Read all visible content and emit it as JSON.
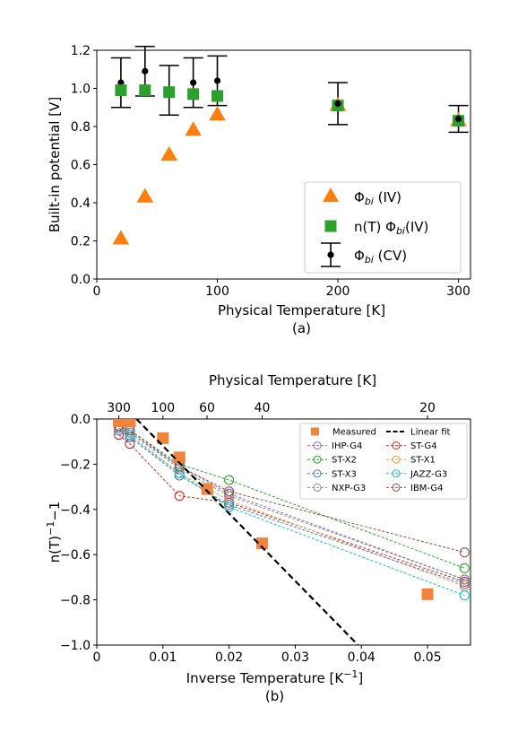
{
  "chart_data": [
    {
      "type": "scatter",
      "panel_label": "(a)",
      "xlabel": "Physical  Temperature [K]",
      "ylabel": "Built-in potential [V]",
      "xlim": [
        0,
        310
      ],
      "ylim": [
        0,
        1.2
      ],
      "xticks": [
        0,
        100,
        200,
        300
      ],
      "yticks": [
        0.0,
        0.2,
        0.4,
        0.6,
        0.8,
        1.0,
        1.2
      ],
      "grid": false,
      "legend_position": "lower-right",
      "series": [
        {
          "name": "Φ_bi (IV)",
          "legend_label": "Φ",
          "legend_sub": "bi",
          "legend_suffix": " (IV)",
          "marker": "triangle",
          "color": "#ff7f0e",
          "x": [
            20,
            40,
            60,
            80,
            100,
            200,
            300
          ],
          "y": [
            0.21,
            0.43,
            0.65,
            0.78,
            0.86,
            0.91,
            0.83
          ]
        },
        {
          "name": "n(T) Φ_bi(IV)",
          "legend_label": "n(T) Φ",
          "legend_sub": "bi",
          "legend_suffix": "(IV)",
          "marker": "square",
          "color": "#2ca02c",
          "x": [
            20,
            40,
            60,
            80,
            100,
            200,
            300
          ],
          "y": [
            0.99,
            0.99,
            0.98,
            0.97,
            0.96,
            0.91,
            0.83
          ]
        },
        {
          "name": "Φ_bi (CV)",
          "legend_label": "Φ",
          "legend_sub": "bi",
          "legend_suffix": " (CV)",
          "marker": "errorbar",
          "color": "#000000",
          "x": [
            20,
            40,
            60,
            80,
            100,
            200,
            300
          ],
          "y": [
            1.03,
            1.09,
            0.99,
            1.03,
            1.04,
            0.92,
            0.84
          ],
          "err": [
            0.13,
            0.13,
            0.13,
            0.13,
            0.13,
            0.11,
            0.07
          ]
        }
      ]
    },
    {
      "type": "line",
      "panel_label": "(b)",
      "xlabel": "Inverse Temperature [K",
      "xlabel_sup": "−1",
      "xlabel_end": "]",
      "ylabel": "n(T)",
      "ylabel_sup": "−1",
      "ylabel_end": "−1",
      "top_xlabel": "Physical  Temperature [K]",
      "xlim": [
        0,
        0.0565
      ],
      "ylim": [
        -1.0,
        0.0
      ],
      "xticks": [
        0,
        0.01,
        0.02,
        0.03,
        0.04,
        0.05
      ],
      "xtick_labels": [
        "0",
        "0.01",
        "0.02",
        "0.03",
        "0.04",
        "0.05"
      ],
      "yticks": [
        0.0,
        -0.2,
        -0.4,
        -0.6,
        -0.8,
        -1.0
      ],
      "ytick_labels": [
        "0.0",
        "−0.2",
        "−0.4",
        "−0.6",
        "−0.8",
        "−1.0"
      ],
      "top_ticks_temperature": [
        300,
        100,
        60,
        40,
        20
      ],
      "top_tick_labels": [
        "300",
        "100",
        "60",
        "40",
        "20"
      ],
      "grid": false,
      "legend_position": "upper-right",
      "measured": {
        "name": "Measured",
        "color": "#f0843c",
        "x": [
          0.00333,
          0.005,
          0.01,
          0.0125,
          0.0167,
          0.025,
          0.05
        ],
        "y": [
          -0.01,
          -0.01,
          -0.085,
          -0.17,
          -0.31,
          -0.55,
          -0.775
        ]
      },
      "linear_fit": {
        "name": "Linear fit",
        "color": "#000000",
        "x": [
          0.006,
          0.0395
        ],
        "y": [
          0.0,
          -1.0
        ]
      },
      "series": [
        {
          "name": "IHP-G4",
          "color": "#9467bd",
          "x": [
            0.00333,
            0.005,
            0.0125,
            0.02,
            0.0556
          ],
          "y": [
            -0.04,
            -0.06,
            -0.21,
            -0.33,
            -0.71
          ]
        },
        {
          "name": "ST-G4",
          "color": "#d62728",
          "x": [
            0.00333,
            0.005,
            0.0125,
            0.02,
            0.0556
          ],
          "y": [
            -0.07,
            -0.11,
            -0.34,
            -0.37,
            -0.72
          ]
        },
        {
          "name": "ST-X2",
          "color": "#2ca02c",
          "x": [
            0.00333,
            0.005,
            0.0125,
            0.02,
            0.0556
          ],
          "y": [
            -0.03,
            -0.05,
            -0.2,
            -0.27,
            -0.66
          ]
        },
        {
          "name": "ST-X1",
          "color": "#e8a33d",
          "x": [
            0.00333,
            0.005,
            0.0125,
            0.02,
            0.0556
          ],
          "y": [
            -0.05,
            -0.08,
            -0.24,
            -0.36,
            -0.74
          ]
        },
        {
          "name": "ST-X3",
          "color": "#4f78c8",
          "x": [
            0.00333,
            0.005,
            0.0125,
            0.02,
            0.0556
          ],
          "y": [
            -0.05,
            -0.08,
            -0.25,
            -0.38,
            -0.73
          ]
        },
        {
          "name": "JAZZ-G3",
          "color": "#17becf",
          "x": [
            0.00333,
            0.005,
            0.0125,
            0.02,
            0.0556
          ],
          "y": [
            -0.04,
            -0.07,
            -0.24,
            -0.39,
            -0.78
          ]
        },
        {
          "name": "NXP-G3",
          "color": "#8c8c8c",
          "x": [
            0.00333,
            0.005,
            0.0125,
            0.02,
            0.0556
          ],
          "y": [
            -0.04,
            -0.06,
            -0.22,
            -0.34,
            -0.71
          ]
        },
        {
          "name": "IBM-G4",
          "color": "#8c564b",
          "x": [
            0.00333,
            0.005,
            0.0125,
            0.02,
            0.0556
          ],
          "y": [
            -0.03,
            -0.05,
            -0.21,
            -0.32,
            -0.59
          ]
        }
      ]
    }
  ]
}
